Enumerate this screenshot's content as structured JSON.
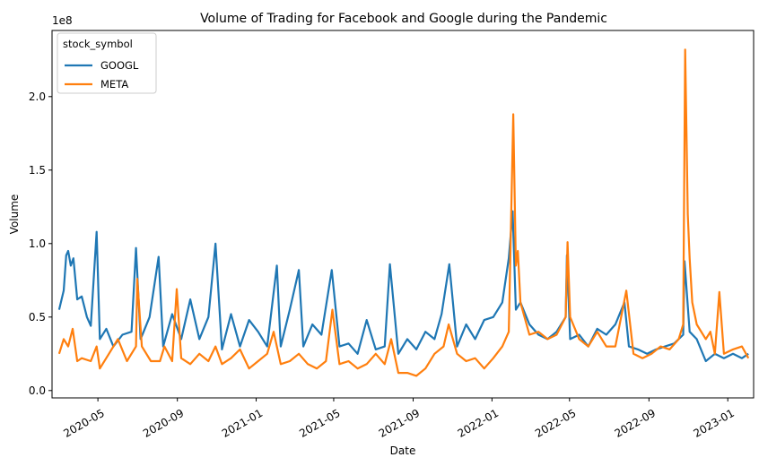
{
  "chart_data": {
    "type": "line",
    "title": "Volume of Trading for Facebook and Google during the Pandemic",
    "xlabel": "Date",
    "ylabel": "Volume",
    "y_offset_label": "1e8",
    "xlim": [
      "2020-02-20",
      "2023-02-10"
    ],
    "ylim": [
      -0.05,
      2.45
    ],
    "y_unit_multiplier": 100000000,
    "x_ticks": [
      "2020-05-01",
      "2020-09-01",
      "2021-01-01",
      "2021-05-01",
      "2021-09-01",
      "2022-01-01",
      "2022-05-01",
      "2022-09-01",
      "2023-01-01"
    ],
    "x_tick_labels": [
      "2020-05",
      "2020-09",
      "2021-01",
      "2021-05",
      "2021-09",
      "2022-01",
      "2022-05",
      "2022-09",
      "2023-01"
    ],
    "y_ticks": [
      0.0,
      0.5,
      1.0,
      1.5,
      2.0
    ],
    "y_tick_labels": [
      "0.0",
      "0.5",
      "1.0",
      "1.5",
      "2.0"
    ],
    "legend": {
      "title": "stock_symbol",
      "placement": "top-left"
    },
    "grid": false,
    "series": [
      {
        "name": "GOOGL",
        "color": "#1f77b4",
        "points": [
          [
            "2020-03-02",
            0.55
          ],
          [
            "2020-03-09",
            0.68
          ],
          [
            "2020-03-13",
            0.92
          ],
          [
            "2020-03-16",
            0.95
          ],
          [
            "2020-03-20",
            0.85
          ],
          [
            "2020-03-24",
            0.9
          ],
          [
            "2020-03-30",
            0.62
          ],
          [
            "2020-04-06",
            0.64
          ],
          [
            "2020-04-14",
            0.5
          ],
          [
            "2020-04-20",
            0.44
          ],
          [
            "2020-04-29",
            1.08
          ],
          [
            "2020-05-04",
            0.35
          ],
          [
            "2020-05-14",
            0.42
          ],
          [
            "2020-05-25",
            0.3
          ],
          [
            "2020-06-08",
            0.38
          ],
          [
            "2020-06-22",
            0.4
          ],
          [
            "2020-06-29",
            0.97
          ],
          [
            "2020-07-06",
            0.35
          ],
          [
            "2020-07-20",
            0.5
          ],
          [
            "2020-08-03",
            0.91
          ],
          [
            "2020-08-10",
            0.3
          ],
          [
            "2020-08-24",
            0.52
          ],
          [
            "2020-09-07",
            0.35
          ],
          [
            "2020-09-21",
            0.62
          ],
          [
            "2020-10-05",
            0.35
          ],
          [
            "2020-10-19",
            0.5
          ],
          [
            "2020-10-30",
            1.0
          ],
          [
            "2020-11-09",
            0.28
          ],
          [
            "2020-11-23",
            0.52
          ],
          [
            "2020-12-07",
            0.3
          ],
          [
            "2020-12-21",
            0.48
          ],
          [
            "2021-01-04",
            0.4
          ],
          [
            "2021-01-18",
            0.3
          ],
          [
            "2021-02-02",
            0.85
          ],
          [
            "2021-02-08",
            0.3
          ],
          [
            "2021-02-22",
            0.55
          ],
          [
            "2021-03-08",
            0.82
          ],
          [
            "2021-03-15",
            0.3
          ],
          [
            "2021-03-29",
            0.45
          ],
          [
            "2021-04-12",
            0.38
          ],
          [
            "2021-04-28",
            0.82
          ],
          [
            "2021-05-10",
            0.3
          ],
          [
            "2021-05-24",
            0.32
          ],
          [
            "2021-06-07",
            0.25
          ],
          [
            "2021-06-21",
            0.48
          ],
          [
            "2021-07-05",
            0.28
          ],
          [
            "2021-07-19",
            0.3
          ],
          [
            "2021-07-27",
            0.86
          ],
          [
            "2021-08-09",
            0.25
          ],
          [
            "2021-08-23",
            0.35
          ],
          [
            "2021-09-06",
            0.28
          ],
          [
            "2021-09-20",
            0.4
          ],
          [
            "2021-10-04",
            0.35
          ],
          [
            "2021-10-15",
            0.52
          ],
          [
            "2021-10-27",
            0.86
          ],
          [
            "2021-11-08",
            0.3
          ],
          [
            "2021-11-22",
            0.45
          ],
          [
            "2021-12-06",
            0.35
          ],
          [
            "2021-12-20",
            0.48
          ],
          [
            "2022-01-03",
            0.5
          ],
          [
            "2022-01-17",
            0.6
          ],
          [
            "2022-01-27",
            0.9
          ],
          [
            "2022-02-02",
            1.22
          ],
          [
            "2022-02-07",
            0.55
          ],
          [
            "2022-02-14",
            0.6
          ],
          [
            "2022-02-28",
            0.45
          ],
          [
            "2022-03-14",
            0.38
          ],
          [
            "2022-03-28",
            0.35
          ],
          [
            "2022-04-11",
            0.4
          ],
          [
            "2022-04-25",
            0.5
          ],
          [
            "2022-04-27",
            0.92
          ],
          [
            "2022-05-02",
            0.35
          ],
          [
            "2022-05-16",
            0.38
          ],
          [
            "2022-05-30",
            0.3
          ],
          [
            "2022-06-13",
            0.42
          ],
          [
            "2022-06-27",
            0.38
          ],
          [
            "2022-07-11",
            0.45
          ],
          [
            "2022-07-25",
            0.6
          ],
          [
            "2022-08-01",
            0.3
          ],
          [
            "2022-08-15",
            0.28
          ],
          [
            "2022-08-29",
            0.25
          ],
          [
            "2022-09-12",
            0.28
          ],
          [
            "2022-09-26",
            0.3
          ],
          [
            "2022-10-10",
            0.32
          ],
          [
            "2022-10-24",
            0.38
          ],
          [
            "2022-10-26",
            0.88
          ],
          [
            "2022-11-03",
            0.4
          ],
          [
            "2022-11-14",
            0.35
          ],
          [
            "2022-11-28",
            0.2
          ],
          [
            "2022-12-12",
            0.25
          ],
          [
            "2022-12-26",
            0.22
          ],
          [
            "2023-01-09",
            0.25
          ],
          [
            "2023-01-23",
            0.22
          ],
          [
            "2023-02-02",
            0.25
          ]
        ]
      },
      {
        "name": "META",
        "color": "#ff7f0e",
        "points": [
          [
            "2020-03-02",
            0.25
          ],
          [
            "2020-03-09",
            0.35
          ],
          [
            "2020-03-16",
            0.3
          ],
          [
            "2020-03-23",
            0.42
          ],
          [
            "2020-03-30",
            0.2
          ],
          [
            "2020-04-06",
            0.22
          ],
          [
            "2020-04-20",
            0.2
          ],
          [
            "2020-04-29",
            0.3
          ],
          [
            "2020-05-04",
            0.15
          ],
          [
            "2020-05-18",
            0.25
          ],
          [
            "2020-06-01",
            0.35
          ],
          [
            "2020-06-15",
            0.2
          ],
          [
            "2020-06-29",
            0.3
          ],
          [
            "2020-07-01",
            0.76
          ],
          [
            "2020-07-08",
            0.3
          ],
          [
            "2020-07-22",
            0.2
          ],
          [
            "2020-08-05",
            0.2
          ],
          [
            "2020-08-12",
            0.3
          ],
          [
            "2020-08-24",
            0.2
          ],
          [
            "2020-08-31",
            0.69
          ],
          [
            "2020-09-07",
            0.22
          ],
          [
            "2020-09-21",
            0.18
          ],
          [
            "2020-10-05",
            0.25
          ],
          [
            "2020-10-19",
            0.2
          ],
          [
            "2020-10-30",
            0.3
          ],
          [
            "2020-11-09",
            0.18
          ],
          [
            "2020-11-23",
            0.22
          ],
          [
            "2020-12-07",
            0.28
          ],
          [
            "2020-12-21",
            0.15
          ],
          [
            "2021-01-04",
            0.2
          ],
          [
            "2021-01-18",
            0.25
          ],
          [
            "2021-01-28",
            0.4
          ],
          [
            "2021-02-08",
            0.18
          ],
          [
            "2021-02-22",
            0.2
          ],
          [
            "2021-03-08",
            0.25
          ],
          [
            "2021-03-22",
            0.18
          ],
          [
            "2021-04-05",
            0.15
          ],
          [
            "2021-04-19",
            0.2
          ],
          [
            "2021-04-29",
            0.55
          ],
          [
            "2021-05-10",
            0.18
          ],
          [
            "2021-05-24",
            0.2
          ],
          [
            "2021-06-07",
            0.15
          ],
          [
            "2021-06-21",
            0.18
          ],
          [
            "2021-07-05",
            0.25
          ],
          [
            "2021-07-19",
            0.18
          ],
          [
            "2021-07-29",
            0.35
          ],
          [
            "2021-08-09",
            0.12
          ],
          [
            "2021-08-23",
            0.12
          ],
          [
            "2021-09-06",
            0.1
          ],
          [
            "2021-09-20",
            0.15
          ],
          [
            "2021-10-04",
            0.25
          ],
          [
            "2021-10-18",
            0.3
          ],
          [
            "2021-10-26",
            0.45
          ],
          [
            "2021-11-08",
            0.25
          ],
          [
            "2021-11-22",
            0.2
          ],
          [
            "2021-12-06",
            0.22
          ],
          [
            "2021-12-20",
            0.15
          ],
          [
            "2022-01-03",
            0.22
          ],
          [
            "2022-01-17",
            0.3
          ],
          [
            "2022-01-27",
            0.4
          ],
          [
            "2022-02-03",
            1.88
          ],
          [
            "2022-02-07",
            0.85
          ],
          [
            "2022-02-10",
            0.95
          ],
          [
            "2022-02-14",
            0.6
          ],
          [
            "2022-02-28",
            0.38
          ],
          [
            "2022-03-14",
            0.4
          ],
          [
            "2022-03-28",
            0.35
          ],
          [
            "2022-04-11",
            0.38
          ],
          [
            "2022-04-25",
            0.5
          ],
          [
            "2022-04-28",
            1.01
          ],
          [
            "2022-05-02",
            0.5
          ],
          [
            "2022-05-16",
            0.35
          ],
          [
            "2022-05-30",
            0.3
          ],
          [
            "2022-06-13",
            0.4
          ],
          [
            "2022-06-27",
            0.3
          ],
          [
            "2022-07-11",
            0.3
          ],
          [
            "2022-07-28",
            0.68
          ],
          [
            "2022-08-08",
            0.25
          ],
          [
            "2022-08-22",
            0.22
          ],
          [
            "2022-09-05",
            0.25
          ],
          [
            "2022-09-19",
            0.3
          ],
          [
            "2022-10-03",
            0.28
          ],
          [
            "2022-10-17",
            0.35
          ],
          [
            "2022-10-24",
            0.45
          ],
          [
            "2022-10-27",
            2.32
          ],
          [
            "2022-10-31",
            1.2
          ],
          [
            "2022-11-03",
            0.9
          ],
          [
            "2022-11-07",
            0.6
          ],
          [
            "2022-11-14",
            0.45
          ],
          [
            "2022-11-28",
            0.35
          ],
          [
            "2022-12-05",
            0.4
          ],
          [
            "2022-12-12",
            0.25
          ],
          [
            "2022-12-19",
            0.67
          ],
          [
            "2022-12-26",
            0.25
          ],
          [
            "2023-01-09",
            0.28
          ],
          [
            "2023-01-23",
            0.3
          ],
          [
            "2023-02-02",
            0.22
          ]
        ]
      }
    ]
  }
}
